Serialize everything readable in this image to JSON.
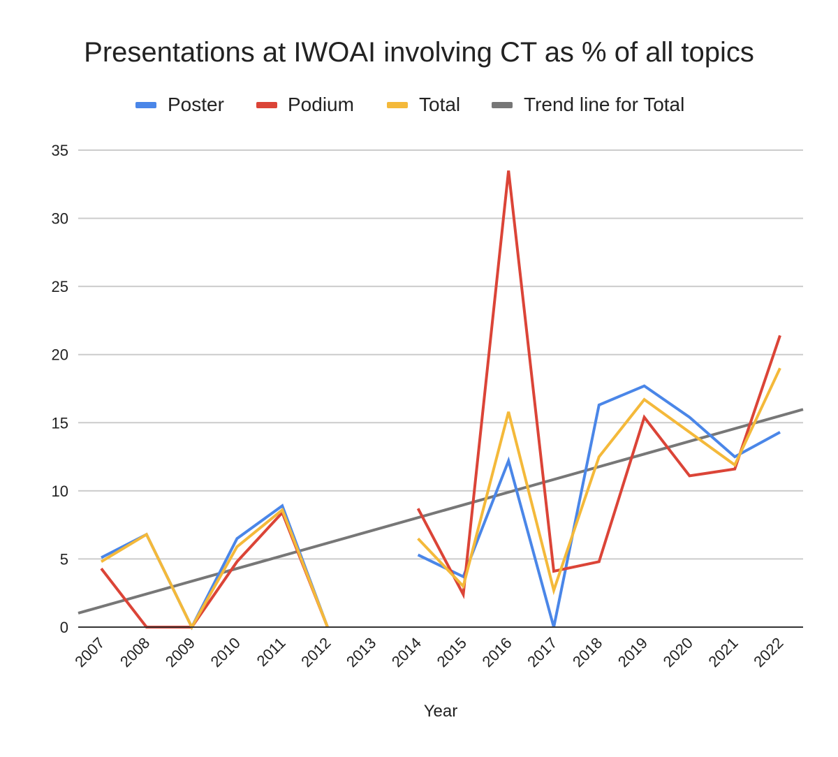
{
  "chart_data": {
    "type": "line",
    "title": "Presentations at IWOAI involving CT as % of all topics",
    "xlabel": "Year",
    "ylabel": "",
    "ylim": [
      0,
      35
    ],
    "yticks": [
      "0",
      "5",
      "10",
      "15",
      "20",
      "25",
      "30",
      "35"
    ],
    "categories": [
      "2007",
      "2008",
      "2009",
      "2010",
      "2011",
      "2012",
      "2013",
      "2014",
      "2015",
      "2016",
      "2017",
      "2018",
      "2019",
      "2020",
      "2021",
      "2022"
    ],
    "grid": true,
    "legend_position": "top",
    "series": [
      {
        "name": "Poster",
        "color": "#4a86e8",
        "values": [
          5.1,
          6.8,
          0,
          6.5,
          8.9,
          0,
          null,
          5.3,
          3.7,
          12.2,
          0,
          16.3,
          17.7,
          15.4,
          12.5,
          14.3
        ]
      },
      {
        "name": "Podium",
        "color": "#db4437",
        "values": [
          4.3,
          0,
          0,
          4.8,
          8.4,
          0,
          null,
          8.7,
          2.4,
          33.5,
          4.1,
          4.8,
          15.4,
          11.1,
          11.6,
          21.4
        ]
      },
      {
        "name": "Total",
        "color": "#f4b93a",
        "values": [
          4.8,
          6.8,
          0,
          5.9,
          8.6,
          0,
          null,
          6.5,
          3.0,
          15.8,
          2.7,
          12.5,
          16.7,
          14.3,
          11.9,
          19.0
        ]
      }
    ],
    "trendline": {
      "name": "Trend line for Total",
      "color": "#777777",
      "x_range": [
        "2007",
        "2022"
      ],
      "y_start": 1.5,
      "y_end": 15.5
    }
  }
}
